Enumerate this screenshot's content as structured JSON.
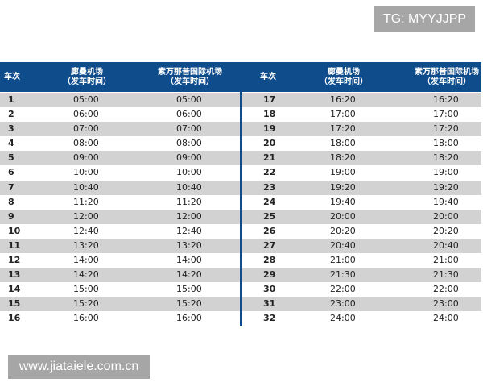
{
  "watermark_top": "TG: MYYJJPP",
  "watermark_bottom": "www.jiataiele.com.cn",
  "header": {
    "col_no": "车次",
    "col_dmk": "廊曼机场",
    "col_dmk_sub": "（发车时间）",
    "col_bkk": "素万那普国际机场",
    "col_bkk_sub": "（发车时间）"
  },
  "left": [
    [
      "1",
      "05:00",
      "05:00"
    ],
    [
      "2",
      "06:00",
      "06:00"
    ],
    [
      "3",
      "07:00",
      "07:00"
    ],
    [
      "4",
      "08:00",
      "08:00"
    ],
    [
      "5",
      "09:00",
      "09:00"
    ],
    [
      "6",
      "10:00",
      "10:00"
    ],
    [
      "7",
      "10:40",
      "10:40"
    ],
    [
      "8",
      "11:20",
      "11:20"
    ],
    [
      "9",
      "12:00",
      "12:00"
    ],
    [
      "10",
      "12:40",
      "12:40"
    ],
    [
      "11",
      "13:20",
      "13:20"
    ],
    [
      "12",
      "14:00",
      "14:00"
    ],
    [
      "13",
      "14:20",
      "14:20"
    ],
    [
      "14",
      "15:00",
      "15:00"
    ],
    [
      "15",
      "15:20",
      "15:20"
    ],
    [
      "16",
      "16:00",
      "16:00"
    ]
  ],
  "right": [
    [
      "17",
      "16:20",
      "16:20"
    ],
    [
      "18",
      "17:00",
      "17:00"
    ],
    [
      "19",
      "17:20",
      "17:20"
    ],
    [
      "20",
      "18:00",
      "18:00"
    ],
    [
      "21",
      "18:20",
      "18:20"
    ],
    [
      "22",
      "19:00",
      "19:00"
    ],
    [
      "23",
      "19:20",
      "19:20"
    ],
    [
      "24",
      "19:40",
      "19:40"
    ],
    [
      "25",
      "20:00",
      "20:00"
    ],
    [
      "26",
      "20:20",
      "20:20"
    ],
    [
      "27",
      "20:40",
      "20:40"
    ],
    [
      "28",
      "21:00",
      "21:00"
    ],
    [
      "29",
      "21:30",
      "21:30"
    ],
    [
      "30",
      "22:00",
      "22:00"
    ],
    [
      "31",
      "23:00",
      "23:00"
    ],
    [
      "32",
      "24:00",
      "24:00"
    ]
  ],
  "colors": {
    "header": "#0f4c8c",
    "stripe": "#d2d2d2"
  }
}
